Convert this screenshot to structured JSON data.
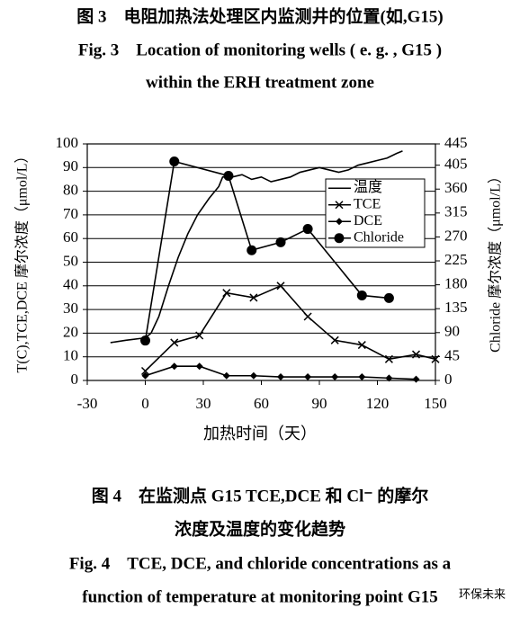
{
  "header": {
    "cn": "图 3　电阻加热法处理区内监测井的位置(如,G15)",
    "en1": "Fig. 3　Location of monitoring wells ( e. g. , G15 )",
    "en2": "within the ERH treatment zone"
  },
  "chart_data": {
    "type": "line",
    "x_label": "加热时间（天）",
    "y_label": "T(C),TCE,DCE 摩尔浓度（μmol/L）",
    "y2_label": "Chloride 摩尔浓度（μmol/L）",
    "xlim": [
      -30,
      150
    ],
    "xticks": [
      -30,
      0,
      30,
      60,
      90,
      120,
      150
    ],
    "ylim": [
      0,
      100
    ],
    "yticks": [
      0,
      10,
      20,
      30,
      40,
      50,
      60,
      70,
      80,
      90,
      100
    ],
    "y2lim": [
      0,
      445
    ],
    "y2ticks": [
      0,
      45,
      90,
      135,
      180,
      225,
      270,
      315,
      360,
      405,
      445
    ],
    "grid": true,
    "legend": "upper right",
    "series": [
      {
        "name": "温度",
        "color": "#000000",
        "marker": "none",
        "x": [
          -18,
          -10,
          0,
          3,
          7,
          12,
          17,
          22,
          27,
          33,
          38,
          40,
          45,
          50,
          55,
          60,
          65,
          70,
          75,
          80,
          85,
          90,
          95,
          100,
          105,
          110,
          115,
          120,
          125,
          130,
          133
        ],
        "values": [
          16,
          17,
          18,
          20,
          27,
          40,
          52,
          62,
          70,
          77,
          82,
          86,
          86,
          87,
          85,
          86,
          84,
          85,
          86,
          88,
          89,
          90,
          89,
          88,
          89,
          91,
          92,
          93,
          94,
          96,
          97
        ]
      },
      {
        "name": "TCE",
        "color": "#000000",
        "marker": "x",
        "x": [
          0,
          15,
          28,
          42,
          56,
          70,
          84,
          98,
          112,
          126,
          140,
          150
        ],
        "values": [
          4,
          16,
          19,
          37,
          35,
          40,
          27,
          17,
          15,
          9,
          11,
          9
        ]
      },
      {
        "name": "DCE",
        "color": "#000000",
        "marker": "diamond",
        "x": [
          0,
          15,
          28,
          42,
          56,
          70,
          84,
          98,
          112,
          126,
          140
        ],
        "values": [
          2,
          6,
          6,
          2,
          2,
          1.5,
          1.5,
          1.5,
          1.5,
          1,
          0.5
        ]
      },
      {
        "name": "Chloride",
        "color": "#000000",
        "marker": "circle",
        "axis": "y2",
        "x": [
          0,
          15,
          43,
          55,
          70,
          84,
          112,
          126
        ],
        "values": [
          75,
          412,
          385,
          245,
          260,
          285,
          160,
          155
        ]
      }
    ]
  },
  "footer": {
    "cn1": "图 4　在监测点 G15 TCE,DCE 和 Cl⁻ 的摩尔",
    "cn2": "浓度及温度的变化趋势",
    "en1": "Fig. 4　TCE, DCE, and chloride concentrations as a",
    "en2": "function of temperature at monitoring point G15",
    "watermark": "环保未来"
  }
}
